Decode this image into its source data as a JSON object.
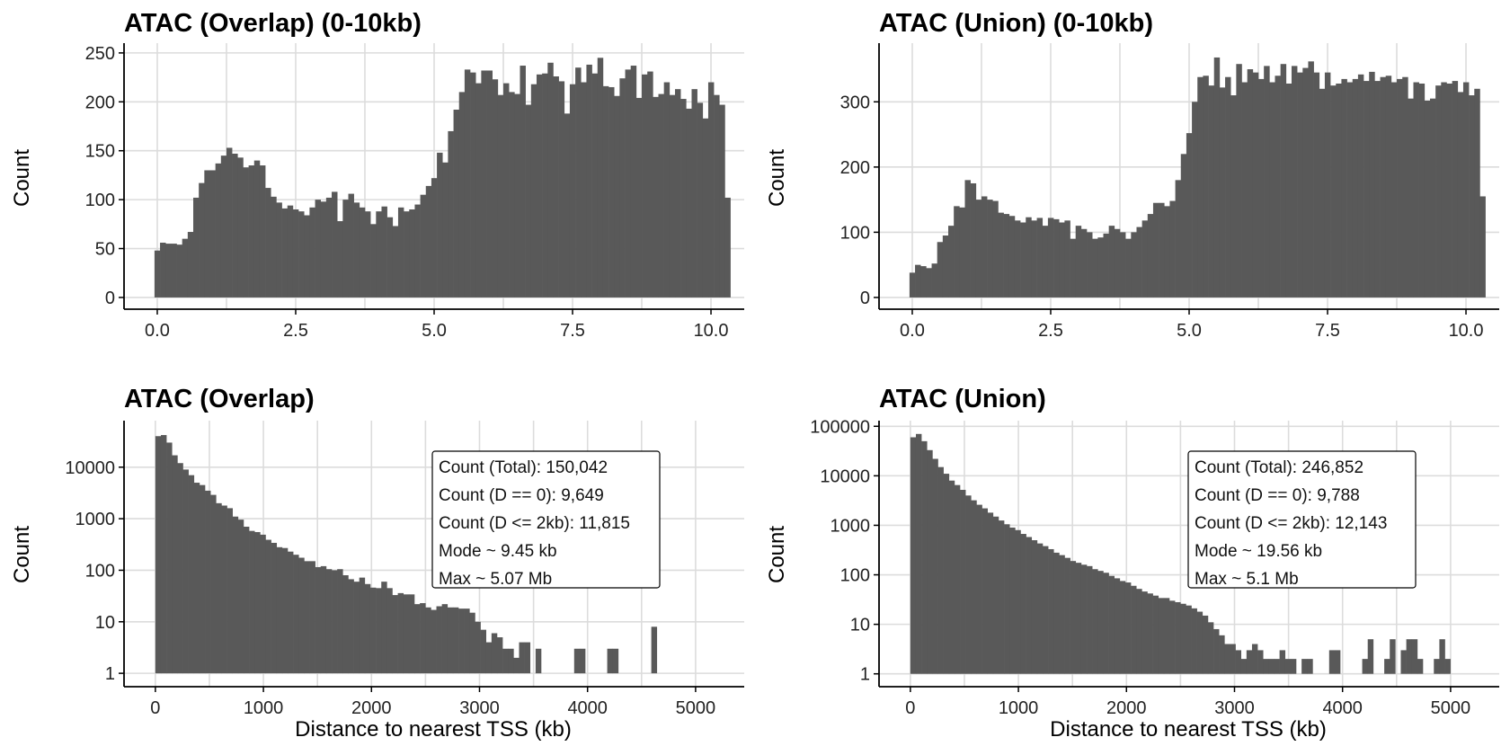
{
  "chart_data": [
    {
      "type": "bar",
      "title": "ATAC (Overlap) (0-10kb)",
      "xlabel": "",
      "ylabel": "Count",
      "scale": "linear",
      "xlim": [
        -0.6,
        10.6
      ],
      "ylim": [
        -12,
        260
      ],
      "xticks": [
        0,
        2.5,
        5,
        7.5,
        10
      ],
      "xtick_labels": [
        "0.0",
        "2.5",
        "5.0",
        "7.5",
        "10.0"
      ],
      "yticks": [
        0,
        50,
        100,
        150,
        200,
        250
      ],
      "ytick_labels": [
        "0",
        "50",
        "100",
        "150",
        "200",
        "250"
      ],
      "bin_start": -0.05,
      "bin_width": 0.1,
      "values": [
        48,
        56,
        55,
        55,
        54,
        60,
        67,
        102,
        117,
        130,
        130,
        137,
        145,
        153,
        147,
        143,
        133,
        135,
        140,
        135,
        112,
        103,
        97,
        91,
        94,
        90,
        88,
        84,
        92,
        100,
        98,
        102,
        108,
        78,
        100,
        106,
        97,
        92,
        88,
        75,
        88,
        93,
        82,
        73,
        92,
        88,
        90,
        95,
        105,
        114,
        122,
        148,
        138,
        170,
        192,
        210,
        233,
        230,
        219,
        232,
        232,
        223,
        207,
        219,
        210,
        208,
        237,
        197,
        218,
        228,
        229,
        240,
        226,
        221,
        188,
        218,
        235,
        220,
        238,
        229,
        245,
        216,
        215,
        206,
        224,
        233,
        237,
        204,
        228,
        231,
        205,
        208,
        220,
        207,
        213,
        203,
        193,
        213,
        199,
        183,
        220,
        207,
        197,
        102
      ],
      "grid": true
    },
    {
      "type": "bar",
      "title": "ATAC (Union) (0-10kb)",
      "xlabel": "",
      "ylabel": "Count",
      "scale": "linear",
      "xlim": [
        -0.6,
        10.6
      ],
      "ylim": [
        -18,
        390
      ],
      "xticks": [
        0,
        2.5,
        5,
        7.5,
        10
      ],
      "xtick_labels": [
        "0.0",
        "2.5",
        "5.0",
        "7.5",
        "10.0"
      ],
      "yticks": [
        0,
        100,
        200,
        300
      ],
      "ytick_labels": [
        "0",
        "100",
        "200",
        "300"
      ],
      "bin_start": -0.05,
      "bin_width": 0.1,
      "values": [
        38,
        50,
        48,
        45,
        52,
        85,
        95,
        110,
        140,
        138,
        180,
        175,
        150,
        155,
        150,
        148,
        130,
        128,
        125,
        118,
        115,
        123,
        118,
        122,
        110,
        122,
        120,
        115,
        118,
        90,
        110,
        105,
        100,
        90,
        92,
        98,
        110,
        105,
        100,
        90,
        100,
        108,
        118,
        128,
        145,
        145,
        140,
        148,
        180,
        220,
        252,
        300,
        338,
        340,
        325,
        368,
        322,
        338,
        310,
        358,
        330,
        350,
        345,
        335,
        355,
        330,
        340,
        358,
        328,
        355,
        345,
        352,
        362,
        345,
        320,
        345,
        325,
        328,
        335,
        330,
        335,
        342,
        332,
        346,
        332,
        338,
        340,
        330,
        335,
        338,
        305,
        330,
        328,
        302,
        305,
        325,
        330,
        328,
        332,
        315,
        330,
        310,
        320,
        155
      ],
      "grid": true
    },
    {
      "type": "bar",
      "title": "ATAC (Overlap)",
      "xlabel": "Distance to nearest TSS (kb)",
      "ylabel": "Count",
      "scale": "log",
      "xlim": [
        -290,
        5450
      ],
      "ylim": [
        0.55,
        80000
      ],
      "xticks": [
        0,
        1000,
        2000,
        3000,
        4000,
        5000
      ],
      "xtick_labels": [
        "0",
        "1000",
        "2000",
        "3000",
        "4000",
        "5000"
      ],
      "yticks": [
        1,
        10,
        100,
        1000,
        10000
      ],
      "ytick_labels": [
        "1",
        "10",
        "100",
        "1000",
        "10000"
      ],
      "bin_start": 0,
      "bin_width": 51,
      "values": [
        40000,
        42000,
        30000,
        17000,
        12000,
        9000,
        7000,
        5000,
        4500,
        3500,
        2900,
        2000,
        1800,
        1600,
        1100,
        960,
        700,
        580,
        550,
        490,
        390,
        340,
        280,
        270,
        230,
        200,
        175,
        150,
        150,
        115,
        120,
        105,
        100,
        105,
        80,
        67,
        60,
        72,
        54,
        46,
        45,
        60,
        45,
        33,
        36,
        34,
        34,
        22,
        23,
        19,
        17,
        20,
        22,
        19,
        19,
        18,
        18,
        15,
        10,
        7,
        4,
        6,
        5,
        3,
        3,
        2,
        4,
        4,
        1,
        3,
        1,
        1,
        1,
        1,
        1,
        1,
        3,
        3,
        1,
        1,
        1,
        1,
        3,
        3,
        1,
        1,
        1,
        1,
        1,
        1,
        8,
        1,
        1,
        1,
        1,
        1,
        1,
        1,
        1,
        1,
        1,
        1,
        1,
        1,
        1,
        1,
        1,
        1,
        1,
        1,
        1,
        1,
        1,
        1,
        1,
        1,
        1,
        1,
        1,
        1
      ],
      "annotation": [
        "Count (Total): 150,042",
        "Count (D == 0): 9,649",
        "Count (D <= 2kb): 11,815",
        "Mode ~ 9.45 kb",
        "Max ~ 5.07 Mb"
      ],
      "grid": true
    },
    {
      "type": "bar",
      "title": "ATAC (Union)",
      "xlabel": "Distance to nearest TSS (kb)",
      "ylabel": "Count",
      "scale": "log",
      "xlim": [
        -290,
        5450
      ],
      "ylim": [
        0.55,
        130000
      ],
      "xticks": [
        0,
        1000,
        2000,
        3000,
        4000,
        5000
      ],
      "xtick_labels": [
        "0",
        "1000",
        "2000",
        "3000",
        "4000",
        "5000"
      ],
      "yticks": [
        1,
        10,
        100,
        1000,
        10000,
        100000
      ],
      "ytick_labels": [
        "1",
        "10",
        "100",
        "1000",
        "10000",
        "100000"
      ],
      "bin_start": 0,
      "bin_width": 51,
      "values": [
        60000,
        70000,
        50000,
        33000,
        22000,
        15000,
        11000,
        8000,
        6500,
        5200,
        4000,
        3200,
        2600,
        2200,
        1800,
        1500,
        1250,
        1050,
        900,
        800,
        670,
        580,
        500,
        430,
        380,
        330,
        280,
        250,
        220,
        190,
        175,
        160,
        150,
        130,
        120,
        110,
        95,
        85,
        75,
        70,
        60,
        52,
        46,
        42,
        38,
        34,
        34,
        30,
        28,
        26,
        24,
        21,
        18,
        15,
        11,
        8,
        6,
        4,
        4,
        3,
        2,
        3,
        4,
        3,
        2,
        2,
        2,
        3,
        2,
        2,
        1,
        2,
        2,
        1,
        1,
        1,
        3,
        3,
        1,
        1,
        1,
        1,
        2,
        5,
        1,
        1,
        2,
        5,
        1,
        3,
        5,
        5,
        2,
        1,
        1,
        2,
        5,
        2,
        1,
        1,
        1,
        1,
        1,
        1,
        1,
        1,
        1,
        1,
        1,
        1,
        1,
        1,
        1,
        1,
        1,
        1,
        1,
        1,
        1,
        1
      ],
      "annotation": [
        "Count (Total): 246,852",
        "Count (D == 0): 9,788",
        "Count (D <= 2kb): 12,143",
        "Mode ~ 19.56 kb",
        "Max ~ 5.1 Mb"
      ],
      "grid": true
    }
  ]
}
